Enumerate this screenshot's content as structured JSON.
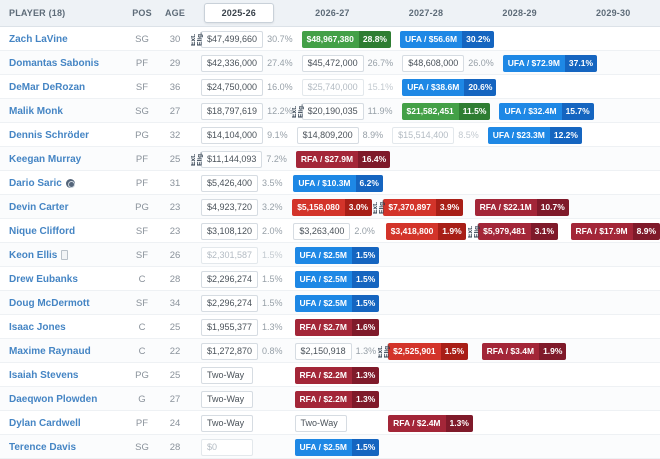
{
  "table": {
    "header": {
      "player": "PLAYER (18)",
      "pos": "POS",
      "age": "AGE",
      "seasons": [
        "2025-26",
        "2026-27",
        "2027-28",
        "2028-29",
        "2029-30"
      ],
      "active_season": "2025-26"
    },
    "ext_label": "Ext. Elig.",
    "colors": {
      "green": "#43a047",
      "green_dark": "#2e7d32",
      "blue": "#1e88e5",
      "blue_dark": "#1565c0",
      "red": "#d3342a",
      "red_dark": "#a81f17",
      "maroon": "#a32638",
      "maroon_dark": "#7f1a2a",
      "link": "#4585c4"
    },
    "rows": [
      {
        "player": "Zach LaVine",
        "pos": "SG",
        "age": "30",
        "icon": null,
        "cells": [
          {
            "type": "plain",
            "amount": "$47,499,660",
            "pct": "30.7%",
            "ext": true
          },
          {
            "type": "green",
            "amount": "$48,967,380",
            "pct": "28.8%"
          },
          {
            "type": "blue",
            "amount": "UFA / $56.6M",
            "pct": "30.2%"
          },
          {
            "type": "empty"
          },
          {
            "type": "empty"
          }
        ]
      },
      {
        "player": "Domantas Sabonis",
        "pos": "PF",
        "age": "29",
        "icon": null,
        "cells": [
          {
            "type": "plain",
            "amount": "$42,336,000",
            "pct": "27.4%"
          },
          {
            "type": "plain",
            "amount": "$45,472,000",
            "pct": "26.7%"
          },
          {
            "type": "plain",
            "amount": "$48,608,000",
            "pct": "26.0%"
          },
          {
            "type": "blue",
            "amount": "UFA / $72.9M",
            "pct": "37.1%"
          },
          {
            "type": "empty"
          }
        ]
      },
      {
        "player": "DeMar DeRozan",
        "pos": "SF",
        "age": "36",
        "icon": null,
        "cells": [
          {
            "type": "plain",
            "amount": "$24,750,000",
            "pct": "16.0%"
          },
          {
            "type": "gray",
            "amount": "$25,740,000",
            "pct": "15.1%"
          },
          {
            "type": "blue",
            "amount": "UFA / $38.6M",
            "pct": "20.6%"
          },
          {
            "type": "empty"
          },
          {
            "type": "empty"
          }
        ]
      },
      {
        "player": "Malik Monk",
        "pos": "SG",
        "age": "27",
        "icon": null,
        "cells": [
          {
            "type": "plain",
            "amount": "$18,797,619",
            "pct": "12.2%"
          },
          {
            "type": "plain",
            "amount": "$20,190,035",
            "pct": "11.9%",
            "ext": true
          },
          {
            "type": "green",
            "amount": "$21,582,451",
            "pct": "11.5%"
          },
          {
            "type": "blue",
            "amount": "UFA / $32.4M",
            "pct": "15.7%"
          },
          {
            "type": "empty"
          }
        ]
      },
      {
        "player": "Dennis Schröder",
        "pos": "PG",
        "age": "32",
        "icon": null,
        "cells": [
          {
            "type": "plain",
            "amount": "$14,104,000",
            "pct": "9.1%"
          },
          {
            "type": "plain",
            "amount": "$14,809,200",
            "pct": "8.9%"
          },
          {
            "type": "gray",
            "amount": "$15,514,400",
            "pct": "8.5%"
          },
          {
            "type": "blue",
            "amount": "UFA / $23.3M",
            "pct": "12.2%"
          },
          {
            "type": "empty"
          }
        ]
      },
      {
        "player": "Keegan Murray",
        "pos": "PF",
        "age": "25",
        "icon": null,
        "cells": [
          {
            "type": "plain",
            "amount": "$11,144,093",
            "pct": "7.2%",
            "ext": true
          },
          {
            "type": "maroon",
            "amount": "RFA / $27.9M",
            "pct": "16.4%"
          },
          {
            "type": "empty"
          },
          {
            "type": "empty"
          },
          {
            "type": "empty"
          }
        ]
      },
      {
        "player": "Dario Saric",
        "pos": "PF",
        "age": "31",
        "icon": "circle-badge",
        "cells": [
          {
            "type": "plain",
            "amount": "$5,426,400",
            "pct": "3.5%"
          },
          {
            "type": "blue",
            "amount": "UFA / $10.3M",
            "pct": "6.2%"
          },
          {
            "type": "empty"
          },
          {
            "type": "empty"
          },
          {
            "type": "empty"
          }
        ]
      },
      {
        "player": "Devin Carter",
        "pos": "PG",
        "age": "23",
        "icon": null,
        "cells": [
          {
            "type": "plain",
            "amount": "$4,923,720",
            "pct": "3.2%"
          },
          {
            "type": "red",
            "amount": "$5,158,080",
            "pct": "3.0%"
          },
          {
            "type": "red",
            "amount": "$7,370,897",
            "pct": "3.9%",
            "ext": true
          },
          {
            "type": "maroon",
            "amount": "RFA / $22.1M",
            "pct": "10.7%"
          },
          {
            "type": "empty"
          }
        ]
      },
      {
        "player": "Nique Clifford",
        "pos": "SF",
        "age": "23",
        "icon": null,
        "cells": [
          {
            "type": "plain",
            "amount": "$3,108,120",
            "pct": "2.0%"
          },
          {
            "type": "plain",
            "amount": "$3,263,400",
            "pct": "2.0%"
          },
          {
            "type": "red",
            "amount": "$3,418,800",
            "pct": "1.9%"
          },
          {
            "type": "maroon",
            "amount": "$5,979,481",
            "pct": "3.1%",
            "ext": true
          },
          {
            "type": "maroon",
            "amount": "RFA / $17.9M",
            "pct": "8.9%"
          }
        ]
      },
      {
        "player": "Keon Ellis",
        "pos": "SF",
        "age": "26",
        "icon": "document",
        "cells": [
          {
            "type": "gray",
            "amount": "$2,301,587",
            "pct": "1.5%"
          },
          {
            "type": "blue",
            "amount": "UFA / $2.5M",
            "pct": "1.5%"
          },
          {
            "type": "empty"
          },
          {
            "type": "empty"
          },
          {
            "type": "empty"
          }
        ]
      },
      {
        "player": "Drew Eubanks",
        "pos": "C",
        "age": "28",
        "icon": null,
        "cells": [
          {
            "type": "plain",
            "amount": "$2,296,274",
            "pct": "1.5%"
          },
          {
            "type": "blue",
            "amount": "UFA / $2.5M",
            "pct": "1.5%"
          },
          {
            "type": "empty"
          },
          {
            "type": "empty"
          },
          {
            "type": "empty"
          }
        ]
      },
      {
        "player": "Doug McDermott",
        "pos": "SF",
        "age": "34",
        "icon": null,
        "cells": [
          {
            "type": "plain",
            "amount": "$2,296,274",
            "pct": "1.5%"
          },
          {
            "type": "blue",
            "amount": "UFA / $2.5M",
            "pct": "1.5%"
          },
          {
            "type": "empty"
          },
          {
            "type": "empty"
          },
          {
            "type": "empty"
          }
        ]
      },
      {
        "player": "Isaac Jones",
        "pos": "C",
        "age": "25",
        "icon": null,
        "cells": [
          {
            "type": "plain",
            "amount": "$1,955,377",
            "pct": "1.3%"
          },
          {
            "type": "maroon",
            "amount": "RFA / $2.7M",
            "pct": "1.6%"
          },
          {
            "type": "empty"
          },
          {
            "type": "empty"
          },
          {
            "type": "empty"
          }
        ]
      },
      {
        "player": "Maxime Raynaud",
        "pos": "C",
        "age": "22",
        "icon": null,
        "cells": [
          {
            "type": "plain",
            "amount": "$1,272,870",
            "pct": "0.8%"
          },
          {
            "type": "plain",
            "amount": "$2,150,918",
            "pct": "1.3%"
          },
          {
            "type": "red",
            "amount": "$2,525,901",
            "pct": "1.5%",
            "ext": true
          },
          {
            "type": "maroon",
            "amount": "RFA / $3.4M",
            "pct": "1.9%"
          },
          {
            "type": "empty"
          }
        ]
      },
      {
        "player": "Isaiah Stevens",
        "pos": "PG",
        "age": "25",
        "icon": null,
        "cells": [
          {
            "type": "twoway",
            "amount": "Two-Way",
            "pct": ""
          },
          {
            "type": "maroon",
            "amount": "RFA / $2.2M",
            "pct": "1.3%"
          },
          {
            "type": "empty"
          },
          {
            "type": "empty"
          },
          {
            "type": "empty"
          }
        ]
      },
      {
        "player": "Daeqwon Plowden",
        "pos": "G",
        "age": "27",
        "icon": null,
        "cells": [
          {
            "type": "twoway",
            "amount": "Two-Way",
            "pct": ""
          },
          {
            "type": "maroon",
            "amount": "RFA / $2.2M",
            "pct": "1.3%"
          },
          {
            "type": "empty"
          },
          {
            "type": "empty"
          },
          {
            "type": "empty"
          }
        ]
      },
      {
        "player": "Dylan Cardwell",
        "pos": "PF",
        "age": "24",
        "icon": null,
        "cells": [
          {
            "type": "twoway",
            "amount": "Two-Way",
            "pct": ""
          },
          {
            "type": "twoway",
            "amount": "Two-Way",
            "pct": ""
          },
          {
            "type": "maroon",
            "amount": "RFA / $2.4M",
            "pct": "1.3%"
          },
          {
            "type": "empty"
          },
          {
            "type": "empty"
          }
        ]
      },
      {
        "player": "Terence Davis",
        "pos": "SG",
        "age": "28",
        "icon": null,
        "cells": [
          {
            "type": "gray",
            "amount": "$0",
            "pct": ""
          },
          {
            "type": "blue",
            "amount": "UFA / $2.5M",
            "pct": "1.5%"
          },
          {
            "type": "empty"
          },
          {
            "type": "empty"
          },
          {
            "type": "empty"
          }
        ]
      }
    ]
  }
}
